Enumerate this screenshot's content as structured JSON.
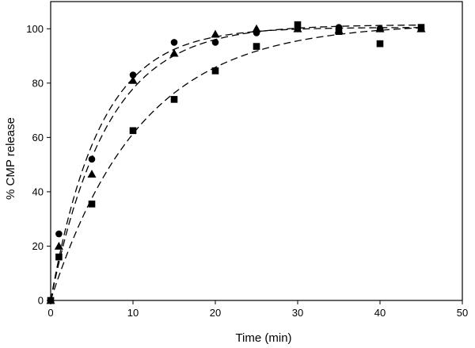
{
  "chart_data": {
    "type": "scatter",
    "xlabel": "Time (min)",
    "ylabel": "% CMP release",
    "xlim": [
      0,
      50
    ],
    "ylim": [
      0,
      110
    ],
    "x_ticks": [
      0,
      10,
      20,
      30,
      40,
      50
    ],
    "y_ticks": [
      0,
      20,
      40,
      60,
      80,
      100
    ],
    "x_tick_labels": [
      "0",
      "10",
      "20",
      "30",
      "40",
      "50"
    ],
    "y_tick_labels": [
      "0",
      "20",
      "40",
      "60",
      "80",
      "100"
    ],
    "grid": false,
    "legend": "none",
    "series": [
      {
        "marker": "circle",
        "x": [
          0,
          1,
          5,
          10,
          15,
          20,
          25,
          30,
          35,
          40,
          45
        ],
        "y": [
          0,
          24.5,
          52,
          83,
          95,
          95,
          98.5,
          100,
          100.5,
          100,
          100
        ],
        "fit": "dashed"
      },
      {
        "marker": "triangle",
        "x": [
          0,
          1,
          5,
          10,
          15,
          20,
          25,
          30,
          35,
          40,
          45
        ],
        "y": [
          0,
          20,
          46.5,
          81,
          91,
          98,
          100,
          100,
          99.5,
          100,
          100
        ],
        "fit": "dashed"
      },
      {
        "marker": "square",
        "x": [
          0,
          1,
          5,
          10,
          15,
          20,
          25,
          30,
          35,
          40,
          45
        ],
        "y": [
          0,
          16,
          35.5,
          62.5,
          74,
          84.5,
          93.5,
          101.5,
          99,
          94.5,
          100.5
        ],
        "fit": "dashed"
      }
    ],
    "colors": {
      "marker": "#000000",
      "axis": "#000000",
      "background": "#ffffff"
    }
  }
}
